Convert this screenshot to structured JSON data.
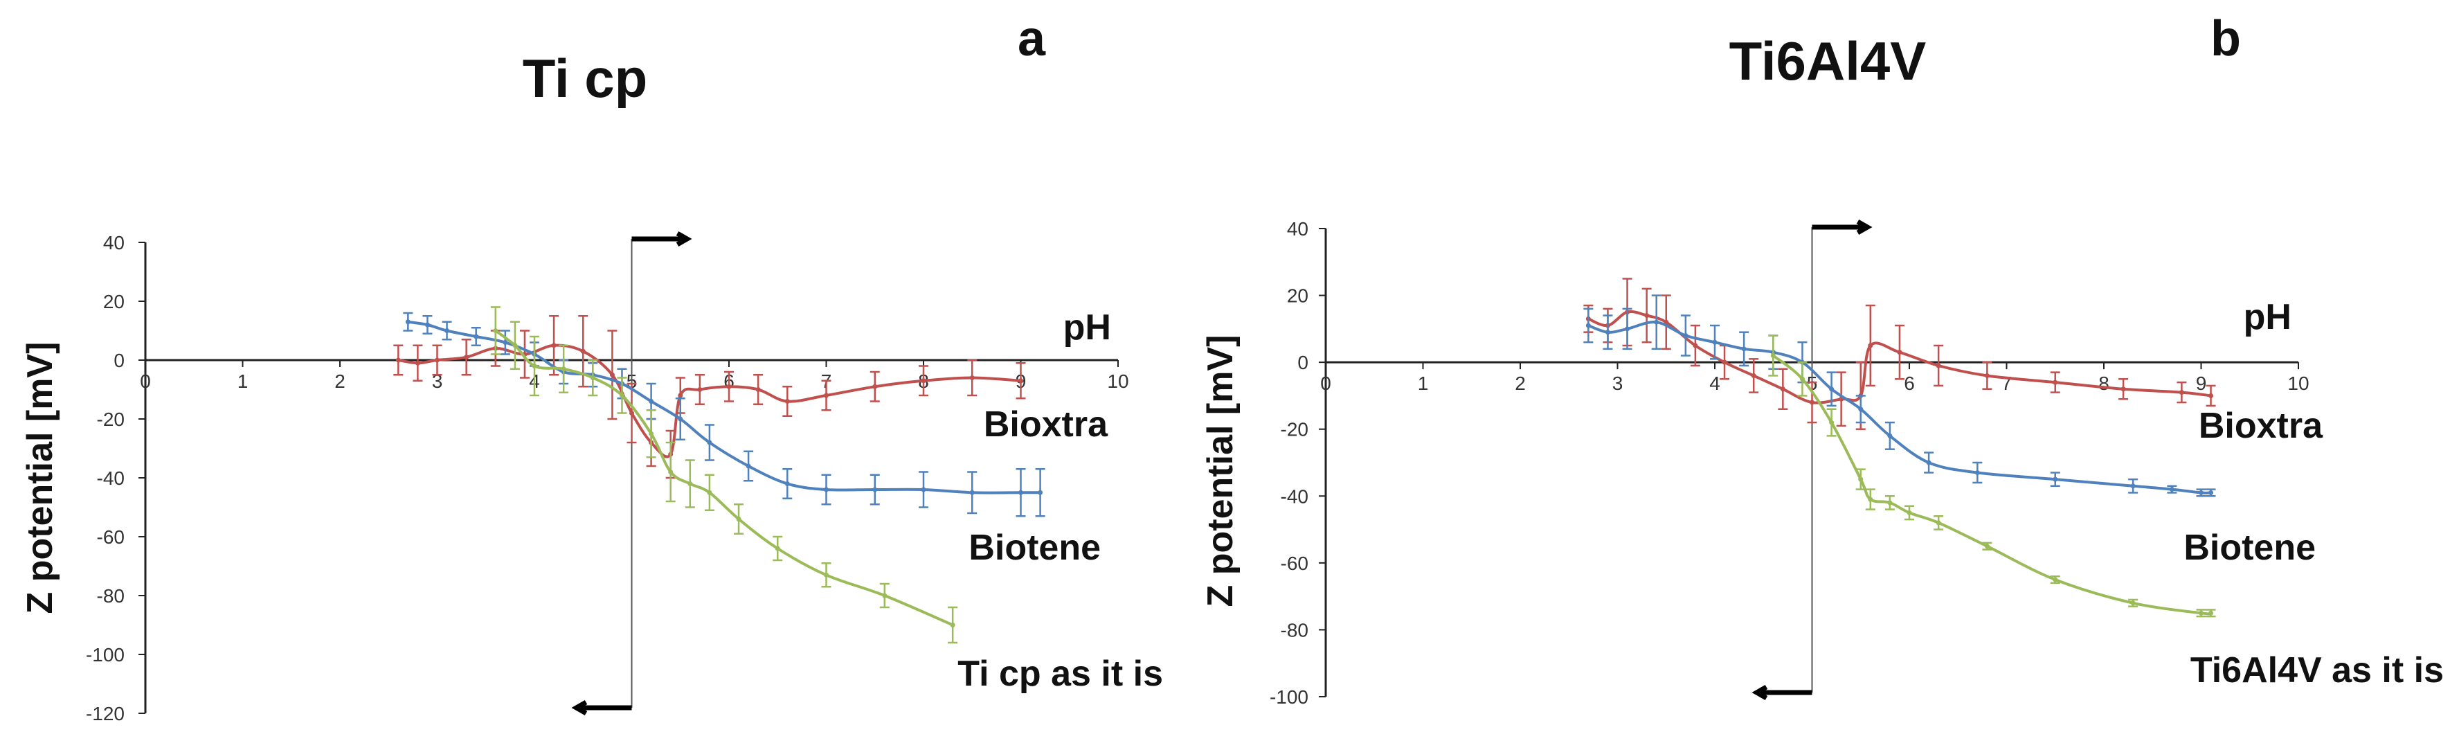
{
  "chart_data": [
    {
      "type": "line",
      "panel_letter": "a",
      "title": "Ti cp",
      "xlabel": "pH",
      "ylabel": "Z potential [mV]",
      "xlim": [
        0,
        10
      ],
      "ylim": [
        -120,
        40
      ],
      "xticks": [
        0,
        1,
        2,
        3,
        4,
        5,
        6,
        7,
        8,
        9,
        10
      ],
      "yticks": [
        40,
        20,
        0,
        -20,
        -40,
        -60,
        -80,
        -100,
        -120
      ],
      "vertical_line_x": 5,
      "series": [
        {
          "name": "Bioxtra",
          "color": "#C0504D",
          "x": [
            2.6,
            2.8,
            3.0,
            3.3,
            3.6,
            3.9,
            4.2,
            4.5,
            4.8,
            5.0,
            5.2,
            5.4,
            5.5,
            5.7,
            6.0,
            6.3,
            6.6,
            7.0,
            7.5,
            8.0,
            8.5,
            9.0
          ],
          "y": [
            0,
            -1,
            0,
            1,
            4,
            2,
            5,
            3,
            -5,
            -18,
            -28,
            -32,
            -12,
            -10,
            -9,
            -10,
            -14,
            -12,
            -9,
            -7,
            -6,
            -7
          ],
          "err": [
            5,
            6,
            5,
            6,
            6,
            8,
            10,
            12,
            15,
            10,
            8,
            8,
            6,
            5,
            5,
            5,
            5,
            5,
            5,
            5,
            6,
            6
          ],
          "end_label": "Bioxtra"
        },
        {
          "name": "Biotene",
          "color": "#4F81BD",
          "x": [
            2.7,
            2.9,
            3.1,
            3.4,
            3.7,
            4.0,
            4.3,
            4.6,
            4.9,
            5.2,
            5.5,
            5.8,
            6.2,
            6.6,
            7.0,
            7.5,
            8.0,
            8.5,
            9.0,
            9.2
          ],
          "y": [
            13,
            12,
            10,
            8,
            6,
            2,
            -4,
            -5,
            -8,
            -14,
            -20,
            -28,
            -36,
            -42,
            -44,
            -44,
            -44,
            -45,
            -45,
            -45
          ],
          "err": [
            3,
            3,
            3,
            3,
            4,
            4,
            4,
            4,
            5,
            6,
            7,
            6,
            5,
            5,
            5,
            5,
            6,
            7,
            8,
            8
          ],
          "end_label": "Biotene"
        },
        {
          "name": "Ti cp as it is",
          "color": "#9BBB59",
          "x": [
            3.6,
            3.8,
            4.0,
            4.3,
            4.6,
            4.9,
            5.2,
            5.4,
            5.6,
            5.8,
            6.1,
            6.5,
            7.0,
            7.6,
            8.3
          ],
          "y": [
            10,
            5,
            -2,
            -3,
            -6,
            -12,
            -25,
            -38,
            -42,
            -45,
            -54,
            -64,
            -73,
            -80,
            -90
          ],
          "err": [
            8,
            8,
            10,
            8,
            6,
            6,
            8,
            10,
            8,
            6,
            5,
            4,
            4,
            4,
            6
          ],
          "end_label": "Ti cp as it is"
        }
      ]
    },
    {
      "type": "line",
      "panel_letter": "b",
      "title": "Ti6Al4V",
      "xlabel": "pH",
      "ylabel": "Z potential [mV]",
      "xlim": [
        0,
        10
      ],
      "ylim": [
        -100,
        40
      ],
      "xticks": [
        0,
        1,
        2,
        3,
        4,
        5,
        6,
        7,
        8,
        9,
        10
      ],
      "yticks": [
        40,
        20,
        0,
        -20,
        -40,
        -60,
        -80,
        -100
      ],
      "vertical_line_x": 5,
      "series": [
        {
          "name": "Bioxtra",
          "color": "#C0504D",
          "x": [
            2.7,
            2.9,
            3.1,
            3.3,
            3.5,
            3.8,
            4.1,
            4.4,
            4.7,
            5.0,
            5.3,
            5.5,
            5.6,
            5.9,
            6.3,
            6.8,
            7.5,
            8.2,
            8.8,
            9.1
          ],
          "y": [
            13,
            11,
            15,
            14,
            12,
            5,
            0,
            -4,
            -8,
            -12,
            -11,
            -10,
            5,
            3,
            -1,
            -4,
            -6,
            -8,
            -9,
            -10
          ],
          "err": [
            4,
            5,
            10,
            8,
            8,
            6,
            5,
            5,
            6,
            6,
            8,
            10,
            12,
            8,
            6,
            4,
            3,
            3,
            3,
            3
          ],
          "end_label": "Bioxtra"
        },
        {
          "name": "Biotene",
          "color": "#4F81BD",
          "x": [
            2.7,
            2.9,
            3.1,
            3.4,
            3.7,
            4.0,
            4.3,
            4.6,
            4.9,
            5.2,
            5.5,
            5.8,
            6.2,
            6.7,
            7.5,
            8.3,
            8.7,
            9.0,
            9.1
          ],
          "y": [
            11,
            9,
            10,
            12,
            8,
            6,
            4,
            3,
            0,
            -8,
            -14,
            -22,
            -30,
            -33,
            -35,
            -37,
            -38,
            -39,
            -39
          ],
          "err": [
            5,
            5,
            6,
            8,
            6,
            5,
            5,
            5,
            6,
            5,
            4,
            4,
            3,
            3,
            2,
            2,
            1,
            1,
            1
          ],
          "end_label": "Biotene"
        },
        {
          "name": "Ti6Al4V as it is",
          "color": "#9BBB59",
          "x": [
            4.6,
            4.9,
            5.2,
            5.5,
            5.6,
            5.8,
            6.0,
            6.3,
            6.8,
            7.5,
            8.3,
            9.0,
            9.1
          ],
          "y": [
            2,
            -5,
            -18,
            -35,
            -41,
            -42,
            -45,
            -48,
            -55,
            -65,
            -72,
            -75,
            -75
          ],
          "err": [
            6,
            5,
            4,
            3,
            3,
            2,
            2,
            2,
            1,
            1,
            1,
            1,
            1
          ],
          "end_label": "Ti6Al4V as it is"
        }
      ]
    }
  ]
}
